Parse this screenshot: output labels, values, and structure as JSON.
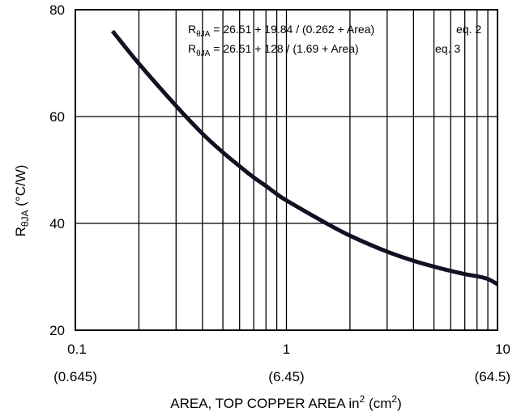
{
  "chart_data": {
    "type": "line",
    "title": "",
    "x_scale": "log",
    "xlim": [
      0.1,
      10
    ],
    "ylim": [
      20,
      80
    ],
    "grid": true,
    "xlabel": {
      "main": "AREA, TOP COPPER AREA in",
      "sup1": "2",
      "mid": " (cm",
      "sup2": "2",
      "end": ")"
    },
    "ylabel": {
      "main": "R",
      "sub": "θJA",
      "rest": " (°C/W)"
    },
    "x_ticks": [
      {
        "value": 0.1,
        "label": "0.1",
        "sublabel": "(0.645)"
      },
      {
        "value": 1,
        "label": "1",
        "sublabel": "(6.45)"
      },
      {
        "value": 10,
        "label": "10",
        "sublabel": "(64.5)"
      }
    ],
    "y_ticks": [
      {
        "value": 20,
        "label": "20"
      },
      {
        "value": 40,
        "label": "40"
      },
      {
        "value": 60,
        "label": "60"
      },
      {
        "value": 80,
        "label": "80"
      }
    ],
    "annotations": [
      {
        "sym": "R",
        "sub": "θJA",
        "text": " = 26.51 + 19.84 / (0.262 + Area)",
        "tag": "eq. 2"
      },
      {
        "sym": "R",
        "sub": "θJA",
        "text": " = 26.51 + 128 / (1.69 + Area)",
        "tag": "eq. 3"
      }
    ],
    "series": [
      {
        "color": "#111122",
        "x": [
          0.15,
          0.2,
          0.3,
          0.4,
          0.5,
          0.6,
          0.7,
          0.8,
          0.9,
          1,
          1.5,
          2,
          3,
          4,
          5,
          6,
          7,
          8,
          9,
          10
        ],
        "y": [
          76.0,
          69.9,
          62.0,
          56.8,
          53.3,
          50.7,
          48.6,
          47.0,
          45.5,
          44.3,
          40.3,
          37.7,
          34.7,
          33.0,
          31.9,
          31.1,
          30.5,
          30.1,
          29.6,
          28.6
        ]
      }
    ]
  }
}
